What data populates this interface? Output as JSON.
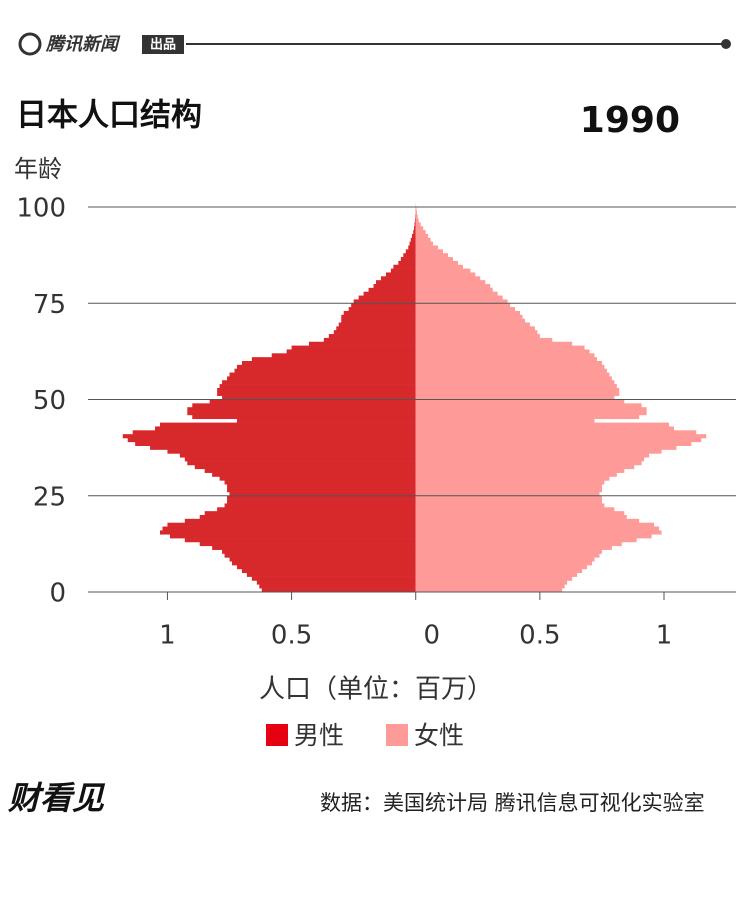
{
  "header": {
    "brand": "腾讯新闻",
    "tag": "出品"
  },
  "chart_data": {
    "type": "pyramid",
    "title": "日本人口结构",
    "subtitle": "1990",
    "y_label": "年龄",
    "x_label": "人口（单位：百万）",
    "ages_from": 0,
    "series": [
      {
        "name": "男性",
        "color": "#d7282c",
        "legend_color": "#e60012",
        "side": "left",
        "values": [
          0.62,
          0.63,
          0.64,
          0.66,
          0.68,
          0.7,
          0.72,
          0.74,
          0.75,
          0.77,
          0.78,
          0.82,
          0.87,
          0.93,
          0.99,
          1.03,
          1.02,
          1.0,
          0.93,
          0.87,
          0.85,
          0.8,
          0.77,
          0.76,
          0.76,
          0.75,
          0.76,
          0.76,
          0.77,
          0.79,
          0.82,
          0.85,
          0.89,
          0.92,
          0.93,
          0.95,
          1.0,
          1.07,
          1.13,
          1.16,
          1.18,
          1.14,
          1.05,
          1.03,
          0.72,
          0.9,
          0.92,
          0.92,
          0.9,
          0.83,
          0.78,
          0.8,
          0.8,
          0.79,
          0.78,
          0.76,
          0.75,
          0.73,
          0.72,
          0.7,
          0.66,
          0.58,
          0.52,
          0.5,
          0.43,
          0.37,
          0.35,
          0.33,
          0.32,
          0.31,
          0.3,
          0.3,
          0.29,
          0.27,
          0.26,
          0.25,
          0.23,
          0.21,
          0.19,
          0.17,
          0.16,
          0.14,
          0.12,
          0.1,
          0.09,
          0.07,
          0.06,
          0.05,
          0.04,
          0.03,
          0.025,
          0.02,
          0.015,
          0.01,
          0.007,
          0.005,
          0.003,
          0.002,
          0.001,
          0.001,
          0
        ]
      },
      {
        "name": "女性",
        "color": "#fe9a98",
        "legend_color": "#fe9a98",
        "side": "right",
        "values": [
          0.59,
          0.6,
          0.61,
          0.63,
          0.65,
          0.67,
          0.69,
          0.71,
          0.72,
          0.74,
          0.75,
          0.79,
          0.83,
          0.89,
          0.95,
          0.99,
          0.98,
          0.96,
          0.9,
          0.85,
          0.84,
          0.8,
          0.76,
          0.75,
          0.75,
          0.74,
          0.75,
          0.75,
          0.76,
          0.78,
          0.81,
          0.84,
          0.88,
          0.91,
          0.92,
          0.94,
          0.99,
          1.05,
          1.11,
          1.15,
          1.17,
          1.13,
          1.04,
          1.02,
          0.72,
          0.9,
          0.93,
          0.93,
          0.91,
          0.84,
          0.8,
          0.82,
          0.82,
          0.81,
          0.8,
          0.79,
          0.78,
          0.77,
          0.76,
          0.75,
          0.73,
          0.72,
          0.7,
          0.68,
          0.63,
          0.55,
          0.5,
          0.49,
          0.48,
          0.46,
          0.44,
          0.43,
          0.42,
          0.4,
          0.38,
          0.37,
          0.35,
          0.33,
          0.31,
          0.3,
          0.28,
          0.26,
          0.24,
          0.22,
          0.19,
          0.17,
          0.15,
          0.13,
          0.11,
          0.09,
          0.07,
          0.06,
          0.05,
          0.04,
          0.03,
          0.02,
          0.012,
          0.008,
          0.005,
          0.003,
          0.001
        ]
      }
    ],
    "xlim": [
      -1.32,
      1.29
    ],
    "xticks": [
      {
        "value": -1,
        "label": "1"
      },
      {
        "value": -0.5,
        "label": "0.5"
      },
      0,
      0.5,
      1
    ],
    "ylim": [
      0,
      100
    ],
    "yticks": [
      0,
      25,
      50,
      75,
      100
    ],
    "grid": true,
    "source": "数据：美国统计局 腾讯信息可视化实验室",
    "logo": "财看见"
  }
}
